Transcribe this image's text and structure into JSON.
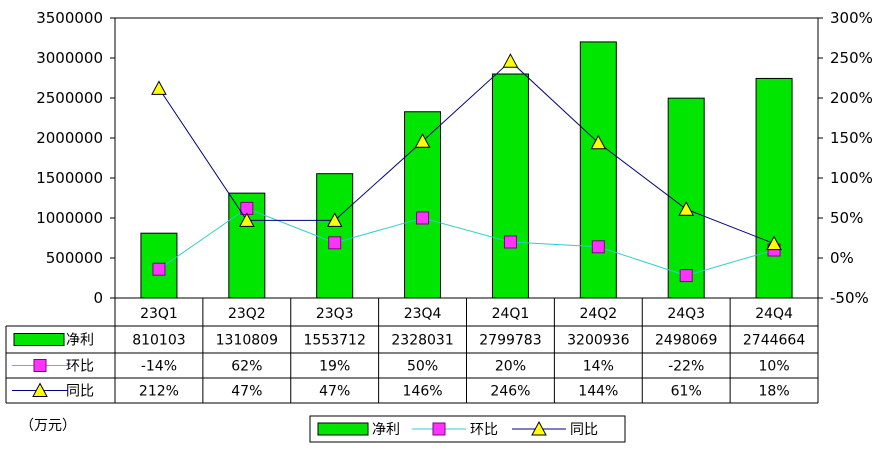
{
  "chart_data": {
    "type": "bar+line",
    "unit_note": "（万元）",
    "categories": [
      "23Q1",
      "23Q2",
      "23Q3",
      "23Q4",
      "24Q1",
      "24Q2",
      "24Q3",
      "24Q4"
    ],
    "left_axis": {
      "ylim": [
        0,
        3500000
      ],
      "ticks": [
        "3500000",
        "3000000",
        "2500000",
        "2000000",
        "1500000",
        "1000000",
        "500000",
        "0"
      ]
    },
    "right_axis": {
      "ylim": [
        -50,
        300
      ],
      "ticks": [
        "300%",
        "250%",
        "200%",
        "150%",
        "100%",
        "50%",
        "0%",
        "-50%"
      ]
    },
    "series": [
      {
        "name": "净利",
        "kind": "bar",
        "axis": "left",
        "color": "#00e600",
        "values": [
          810103,
          1310809,
          1553712,
          2328031,
          2799783,
          3200936,
          2498069,
          2744664
        ],
        "labels": [
          "810103",
          "1310809",
          "1553712",
          "2328031",
          "2799783",
          "3200936",
          "2498069",
          "2744664"
        ]
      },
      {
        "name": "环比",
        "kind": "line",
        "axis": "right",
        "color": "#33cccc",
        "marker": "square",
        "marker_color": "#ff33ff",
        "values": [
          -14,
          62,
          19,
          50,
          20,
          14,
          -22,
          10
        ],
        "labels": [
          "-14%",
          "62%",
          "19%",
          "50%",
          "20%",
          "14%",
          "-22%",
          "10%"
        ]
      },
      {
        "name": "同比",
        "kind": "line",
        "axis": "right",
        "color": "#000080",
        "marker": "triangle",
        "marker_color": "#ffff00",
        "values": [
          212,
          47,
          47,
          146,
          246,
          144,
          61,
          18
        ],
        "labels": [
          "212%",
          "47%",
          "47%",
          "146%",
          "246%",
          "144%",
          "61%",
          "18%"
        ]
      }
    ],
    "legend_position": "bottom-center"
  }
}
